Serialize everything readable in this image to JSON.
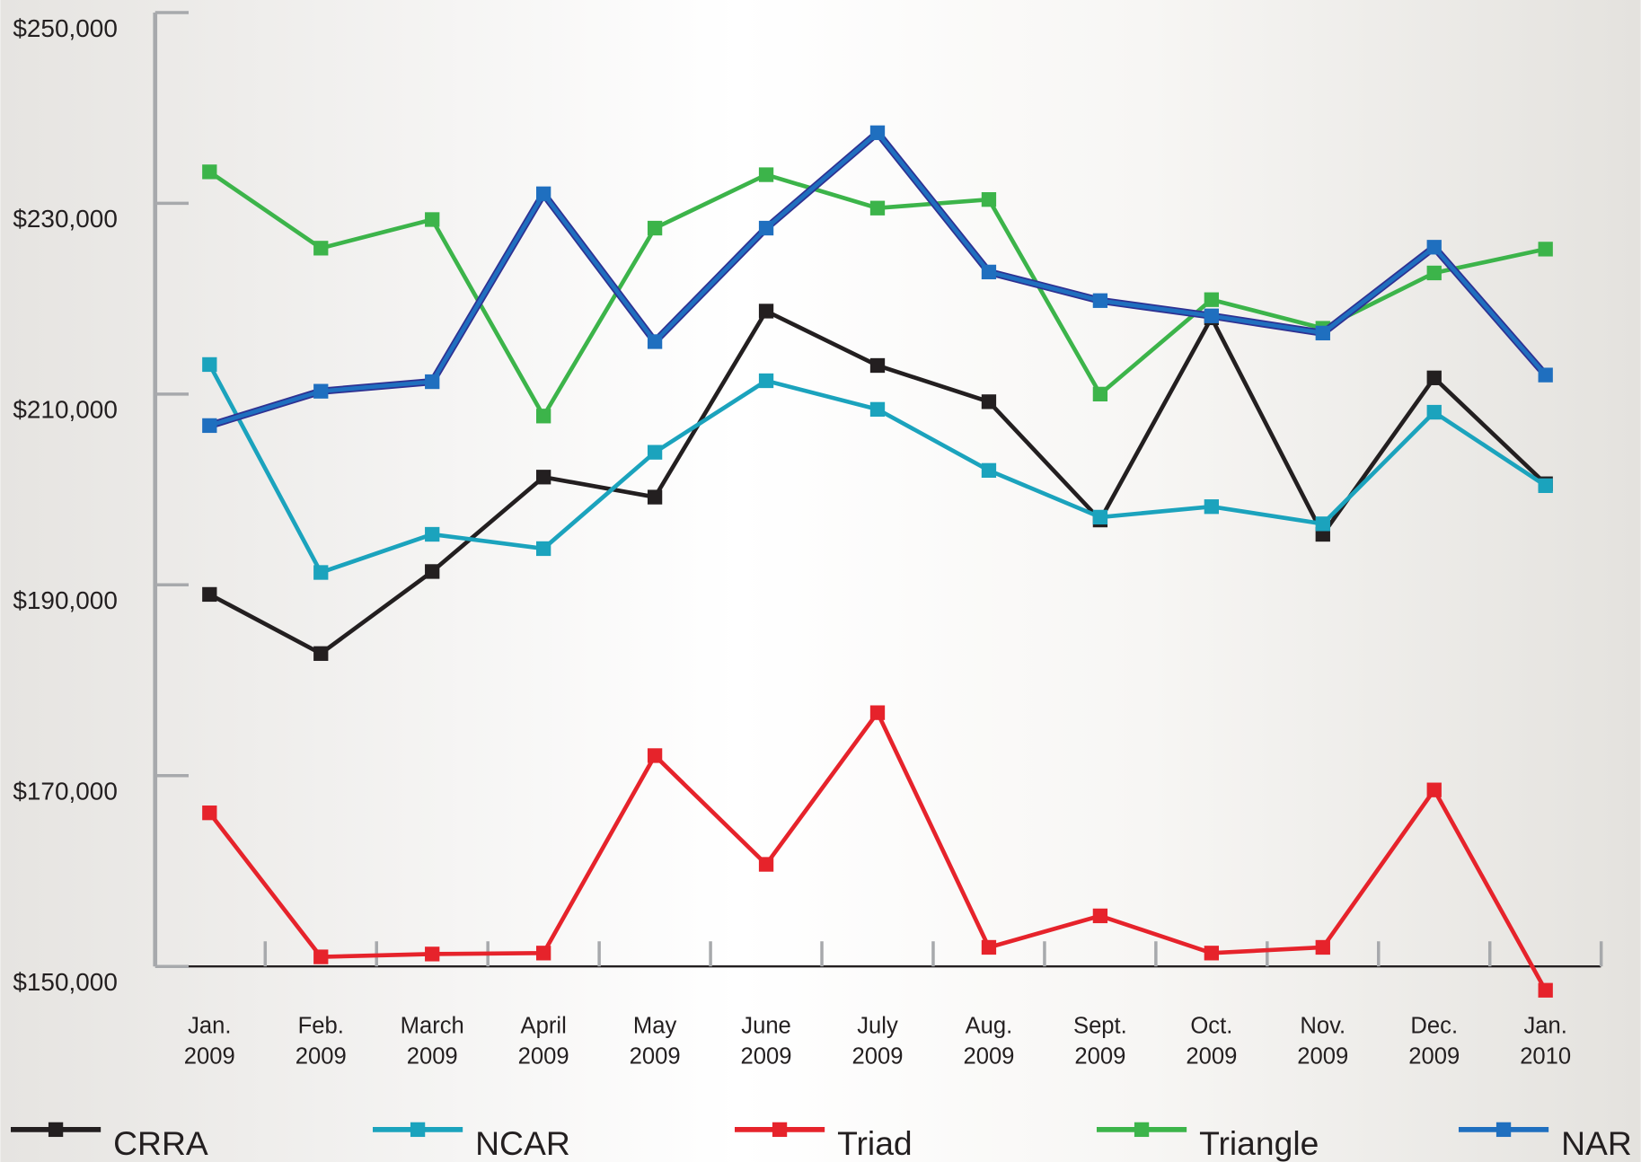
{
  "chart_data": {
    "type": "line",
    "categories": [
      [
        "Jan.",
        "2009"
      ],
      [
        "Feb.",
        "2009"
      ],
      [
        "March",
        "2009"
      ],
      [
        "April",
        "2009"
      ],
      [
        "May",
        "2009"
      ],
      [
        "June",
        "2009"
      ],
      [
        "July",
        "2009"
      ],
      [
        "Aug.",
        "2009"
      ],
      [
        "Sept.",
        "2009"
      ],
      [
        "Oct.",
        "2009"
      ],
      [
        "Nov.",
        "2009"
      ],
      [
        "Dec.",
        "2009"
      ],
      [
        "Jan.",
        "2010"
      ]
    ],
    "series": [
      {
        "name": "CRRA",
        "color": "#231f20",
        "values": [
          189000,
          182800,
          191400,
          201300,
          199200,
          218700,
          213000,
          209200,
          196800,
          218000,
          195300,
          211700,
          200600
        ]
      },
      {
        "name": "NCAR",
        "color": "#1ba3bd",
        "values": [
          213100,
          191300,
          195300,
          193800,
          203900,
          211400,
          208400,
          202000,
          197100,
          198200,
          196400,
          208100,
          200400
        ]
      },
      {
        "name": "Triad",
        "color": "#e6232b",
        "values": [
          166100,
          151000,
          151300,
          151400,
          172100,
          160700,
          176600,
          152000,
          155300,
          151400,
          152000,
          168500,
          147500
        ]
      },
      {
        "name": "Triangle",
        "color": "#3cb44a",
        "values": [
          233300,
          225300,
          228300,
          207700,
          227400,
          233000,
          229500,
          230400,
          210000,
          219900,
          216900,
          222700,
          225200
        ]
      },
      {
        "name": "NAR",
        "color": "#1f6fbf",
        "values": [
          206700,
          210300,
          211300,
          231000,
          215500,
          227400,
          237400,
          222800,
          219800,
          218200,
          216400,
          225400,
          212000
        ]
      }
    ],
    "ylim": [
      150000,
      250000
    ],
    "yticks": [
      {
        "value": 150000,
        "label": "$150,000"
      },
      {
        "value": 170000,
        "label": "$170,000"
      },
      {
        "value": 190000,
        "label": "$190,000"
      },
      {
        "value": 210000,
        "label": "$210,000"
      },
      {
        "value": 230000,
        "label": "$230,000"
      },
      {
        "value": 250000,
        "label": "$250,000"
      }
    ],
    "legend": "bottom"
  }
}
